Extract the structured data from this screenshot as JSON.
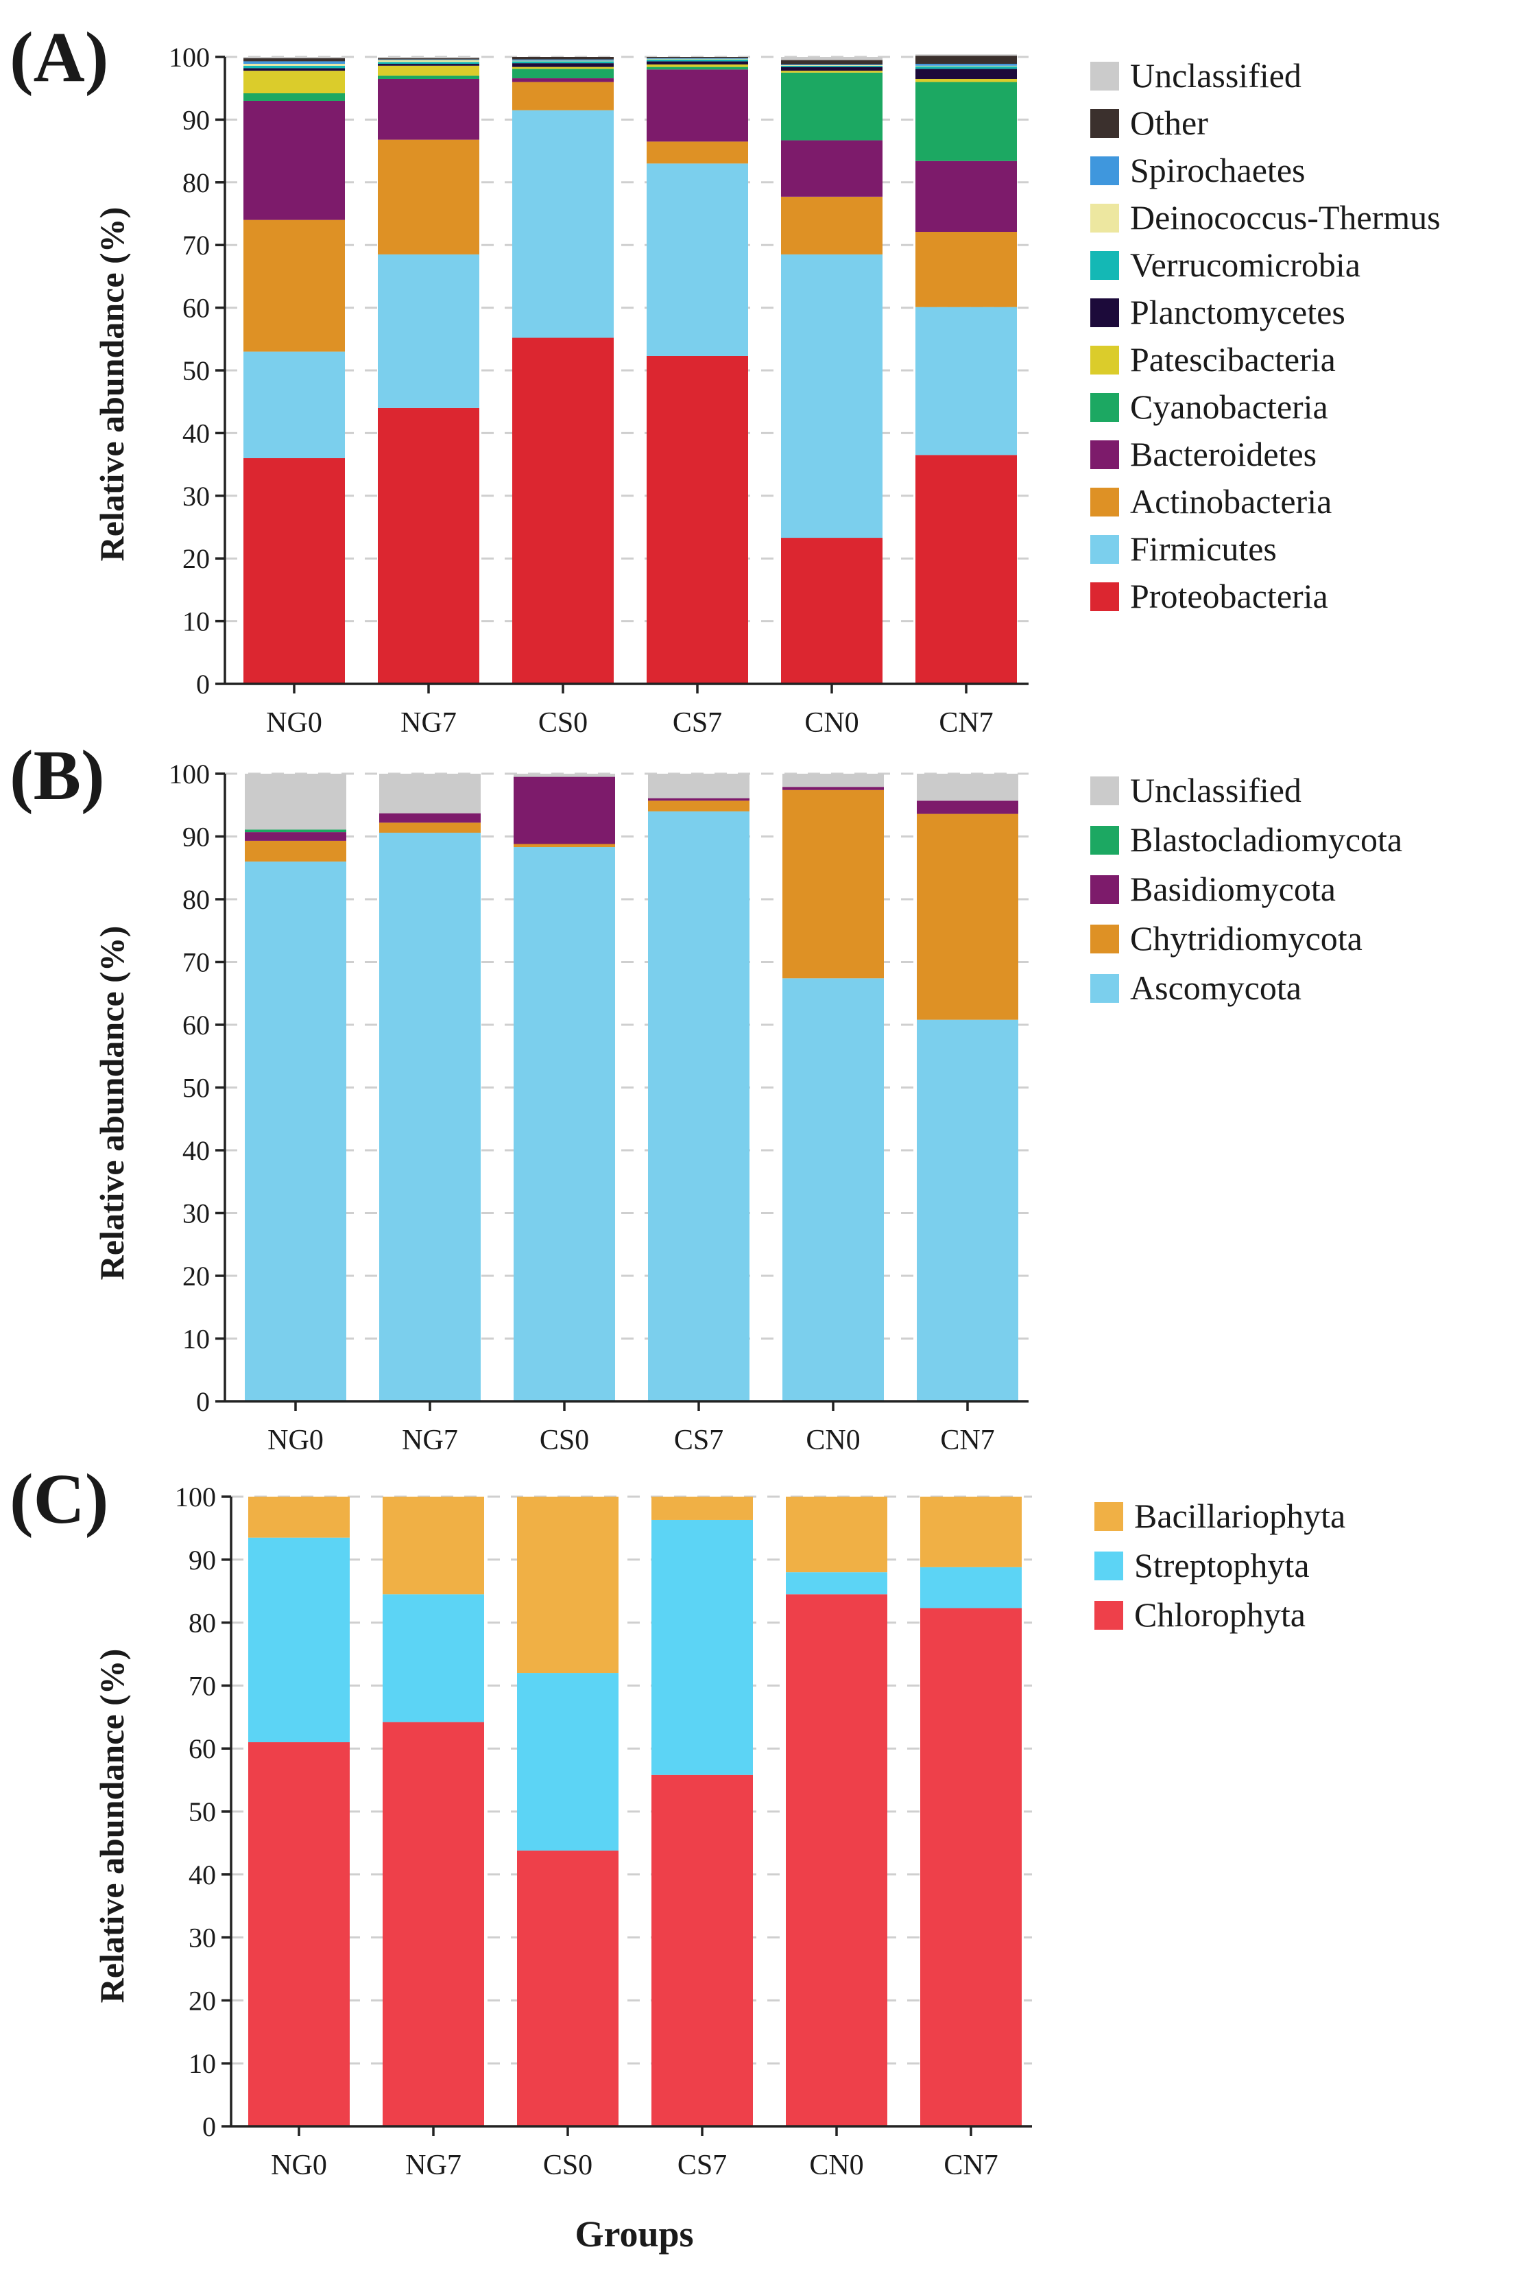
{
  "figure": {
    "x_title": "Groups"
  },
  "chart_data": [
    {
      "type": "bar",
      "stacked": true,
      "panel_label": "(A)",
      "ylabel": "Relative abundance (%)",
      "ylim": [
        0,
        100
      ],
      "yticks": [
        "0",
        "10",
        "20",
        "30",
        "40",
        "50",
        "60",
        "70",
        "80",
        "90",
        "100"
      ],
      "grid": true,
      "categories": [
        "NG0",
        "NG7",
        "CS0",
        "CS7",
        "CN0",
        "CN7"
      ],
      "series": [
        {
          "name": "Proteobacteria",
          "color": "#dc2630",
          "values": [
            36.0,
            44.0,
            55.2,
            52.3,
            23.3,
            36.5
          ]
        },
        {
          "name": "Firmicutes",
          "color": "#7bcfed",
          "values": [
            17.0,
            24.5,
            36.3,
            30.7,
            45.2,
            23.6
          ]
        },
        {
          "name": "Actinobacteria",
          "color": "#de9125",
          "values": [
            21.0,
            18.3,
            4.5,
            3.5,
            9.2,
            12.0
          ]
        },
        {
          "name": "Bacteroidetes",
          "color": "#7d1b6b",
          "values": [
            19.0,
            9.7,
            0.6,
            11.5,
            9.0,
            11.3
          ]
        },
        {
          "name": "Cyanobacteria",
          "color": "#1ca862",
          "values": [
            1.2,
            0.5,
            1.5,
            0.4,
            10.8,
            12.6
          ]
        },
        {
          "name": "Patescibacteria",
          "color": "#dbcc2b",
          "values": [
            3.6,
            1.6,
            0.3,
            0.4,
            0.3,
            0.5
          ]
        },
        {
          "name": "Planctomycetes",
          "color": "#1c0a3a",
          "values": [
            0.4,
            0.3,
            0.6,
            0.5,
            0.6,
            1.6
          ]
        },
        {
          "name": "Verrucomicrobia",
          "color": "#14b8b5",
          "values": [
            0.4,
            0.3,
            0.3,
            0.3,
            0.2,
            0.4
          ]
        },
        {
          "name": "Deinococcus-Thermus",
          "color": "#ede7a0",
          "values": [
            0.3,
            0.3,
            0.1,
            0.1,
            0.1,
            0.1
          ]
        },
        {
          "name": "Spirochaetes",
          "color": "#3f97dd",
          "values": [
            0.4,
            0.1,
            0.2,
            0.1,
            0.1,
            0.3
          ]
        },
        {
          "name": "Other",
          "color": "#3b302d",
          "values": [
            0.5,
            0.2,
            0.4,
            0.2,
            0.7,
            1.3
          ]
        },
        {
          "name": "Unclassified",
          "color": "#cbcbcb",
          "values": [
            0.2,
            0.2,
            0.0,
            0.0,
            0.5,
            0.2
          ]
        }
      ]
    },
    {
      "type": "bar",
      "stacked": true,
      "panel_label": "(B)",
      "ylabel": "Relative abundance (%)",
      "ylim": [
        0,
        100
      ],
      "yticks": [
        "0",
        "10",
        "20",
        "30",
        "40",
        "50",
        "60",
        "70",
        "80",
        "90",
        "100"
      ],
      "grid": true,
      "categories": [
        "NG0",
        "NG7",
        "CS0",
        "CS7",
        "CN0",
        "CN7"
      ],
      "series": [
        {
          "name": "Ascomycota",
          "color": "#7bcfed",
          "values": [
            86.0,
            90.6,
            88.3,
            94.0,
            67.4,
            60.8
          ]
        },
        {
          "name": "Chytridiomycota",
          "color": "#de9125",
          "values": [
            3.3,
            1.6,
            0.5,
            1.7,
            30.0,
            32.8
          ]
        },
        {
          "name": "Basidiomycota",
          "color": "#7d1b6b",
          "values": [
            1.4,
            1.5,
            10.7,
            0.4,
            0.5,
            2.1
          ]
        },
        {
          "name": "Blastocladiomycota",
          "color": "#1ca862",
          "values": [
            0.4,
            0.0,
            0.0,
            0.0,
            0.0,
            0.0
          ]
        },
        {
          "name": "Unclassified",
          "color": "#cbcbcb",
          "values": [
            8.9,
            6.3,
            0.5,
            3.9,
            2.1,
            4.3
          ]
        }
      ]
    },
    {
      "type": "bar",
      "stacked": true,
      "panel_label": "(C)",
      "ylabel": "Relative abundance (%)",
      "ylim": [
        0,
        100
      ],
      "yticks": [
        "0",
        "10",
        "20",
        "30",
        "40",
        "50",
        "60",
        "70",
        "80",
        "90",
        "100"
      ],
      "grid": true,
      "categories": [
        "NG0",
        "NG7",
        "CS0",
        "CS7",
        "CN0",
        "CN7"
      ],
      "series": [
        {
          "name": "Chlorophyta",
          "color": "#ee404a",
          "values": [
            61.0,
            64.2,
            43.8,
            55.8,
            84.5,
            82.3
          ]
        },
        {
          "name": "Streptophyta",
          "color": "#5cd4f5",
          "values": [
            32.5,
            20.3,
            28.2,
            40.5,
            3.5,
            6.5
          ]
        },
        {
          "name": "Bacillariophyta",
          "color": "#f0b045",
          "values": [
            6.5,
            15.5,
            28.0,
            3.7,
            12.0,
            11.2
          ]
        }
      ]
    }
  ]
}
